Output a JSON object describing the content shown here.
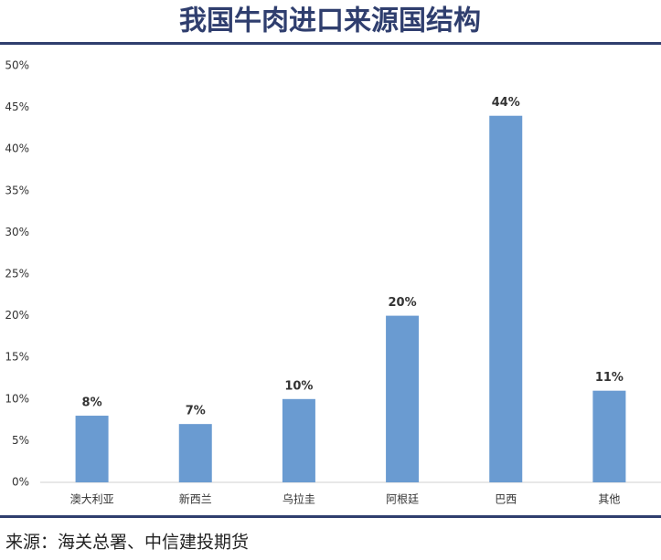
{
  "chart_data": {
    "type": "bar",
    "title": "我国牛肉进口来源国结构",
    "categories": [
      "澳大利亚",
      "新西兰",
      "乌拉圭",
      "阿根廷",
      "巴西",
      "其他"
    ],
    "values": [
      8,
      7,
      10,
      20,
      44,
      11
    ],
    "value_labels": [
      "8%",
      "7%",
      "10%",
      "20%",
      "44%",
      "11%"
    ],
    "color": "#6a9bd1",
    "ylim": [
      0,
      50
    ],
    "yticks": [
      {
        "value": 0,
        "label": "0%"
      },
      {
        "value": 5,
        "label": "5%"
      },
      {
        "value": 10,
        "label": "10%"
      },
      {
        "value": 15,
        "label": "15%"
      },
      {
        "value": 20,
        "label": "20%"
      },
      {
        "value": 25,
        "label": "25%"
      },
      {
        "value": 30,
        "label": "30%"
      },
      {
        "value": 35,
        "label": "35%"
      },
      {
        "value": 40,
        "label": "40%"
      },
      {
        "value": 45,
        "label": "45%"
      },
      {
        "value": 50,
        "label": "50%"
      }
    ],
    "grid": false,
    "source": "来源：海关总署、中信建投期货"
  }
}
